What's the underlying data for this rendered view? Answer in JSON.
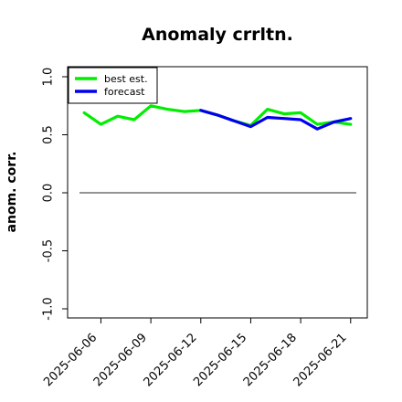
{
  "chart_data": {
    "type": "line",
    "title": "Anomaly crrltn.",
    "xlabel": "",
    "ylabel": "anom. corr.",
    "ylim": [
      -1.0,
      1.0
    ],
    "yticks": [
      -1.0,
      -0.5,
      0.0,
      0.5,
      1.0
    ],
    "ytick_labels": [
      "-1.0",
      "-0.5",
      "0.0",
      "0.5",
      "1.0"
    ],
    "x_dates": [
      "2025-06-05",
      "2025-06-06",
      "2025-06-07",
      "2025-06-08",
      "2025-06-09",
      "2025-06-10",
      "2025-06-11",
      "2025-06-12",
      "2025-06-13",
      "2025-06-14",
      "2025-06-15",
      "2025-06-16",
      "2025-06-17",
      "2025-06-18",
      "2025-06-19",
      "2025-06-20",
      "2025-06-21"
    ],
    "xlim": [
      "2025-06-04",
      "2025-06-22"
    ],
    "xticks": [
      "2025-06-06",
      "2025-06-09",
      "2025-06-12",
      "2025-06-15",
      "2025-06-18",
      "2025-06-21"
    ],
    "xtick_colors": [
      "#000000",
      "#000000",
      "#228B22",
      "#000000",
      "#000000",
      "#000000"
    ],
    "hline": 0.0,
    "grid": false,
    "legend_position": "top-left",
    "series": [
      {
        "name": "best est.",
        "color": "#00ee00",
        "x": [
          "2025-06-05",
          "2025-06-06",
          "2025-06-07",
          "2025-06-08",
          "2025-06-09",
          "2025-06-10",
          "2025-06-11",
          "2025-06-12",
          "2025-06-13",
          "2025-06-14",
          "2025-06-15",
          "2025-06-16",
          "2025-06-17",
          "2025-06-18",
          "2025-06-19",
          "2025-06-20",
          "2025-06-21"
        ],
        "values": [
          0.69,
          0.59,
          0.66,
          0.63,
          0.75,
          0.72,
          0.7,
          0.71,
          0.67,
          0.62,
          0.58,
          0.72,
          0.68,
          0.69,
          0.59,
          0.61,
          0.59
        ]
      },
      {
        "name": "forecast",
        "color": "#0000ee",
        "x": [
          "2025-06-12",
          "2025-06-13",
          "2025-06-14",
          "2025-06-15",
          "2025-06-16",
          "2025-06-17",
          "2025-06-18",
          "2025-06-19",
          "2025-06-20",
          "2025-06-21"
        ],
        "values": [
          0.71,
          0.67,
          0.62,
          0.57,
          0.65,
          0.64,
          0.63,
          0.55,
          0.61,
          0.64
        ]
      }
    ]
  }
}
